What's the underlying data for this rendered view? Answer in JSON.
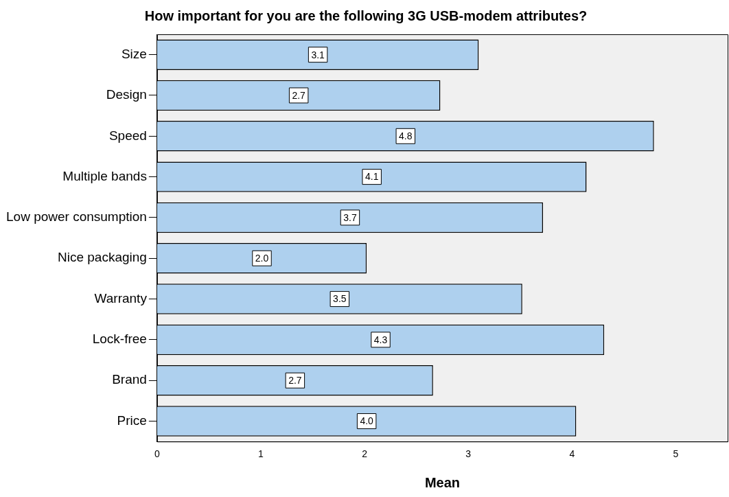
{
  "chart_data": {
    "type": "bar",
    "orientation": "horizontal",
    "title": "How important for you are the following 3G USB-modem attributes?",
    "xlabel": "Mean",
    "categories": [
      "Size",
      "Design",
      "Speed",
      "Multiple bands",
      "Low power consumption",
      "Nice packaging",
      "Warranty",
      "Lock-free",
      "Brand",
      "Price"
    ],
    "values": [
      3.1,
      2.73,
      4.79,
      4.14,
      3.72,
      2.02,
      3.52,
      4.31,
      2.66,
      4.04
    ],
    "value_labels": [
      "3.1",
      "2.7",
      "4.8",
      "4.1",
      "3.7",
      "2.0",
      "3.5",
      "4.3",
      "2.7",
      "4.0"
    ],
    "color": "#aed0ee",
    "xlim": [
      0,
      5.5
    ],
    "xticks": [
      0,
      1,
      2,
      3,
      4,
      5
    ],
    "grid": false,
    "legend": false
  }
}
